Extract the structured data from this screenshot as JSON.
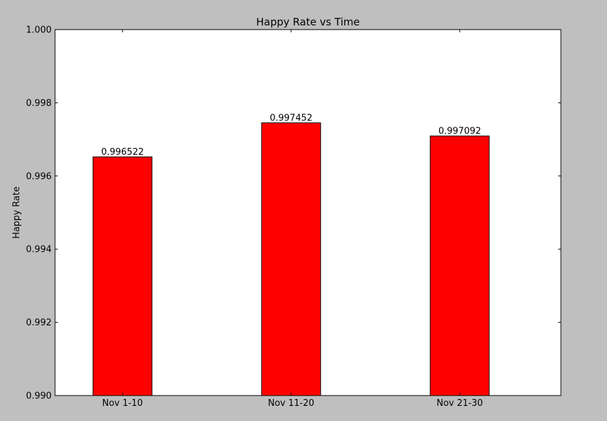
{
  "chart_data": {
    "type": "bar",
    "title": "Happy Rate vs Time",
    "xlabel": "",
    "ylabel": "Happy Rate",
    "categories": [
      "Nov 1-10",
      "Nov 11-20",
      "Nov 21-30"
    ],
    "values": [
      0.996522,
      0.997452,
      0.997092
    ],
    "value_labels": [
      "0.996522",
      "0.997452",
      "0.997092"
    ],
    "ylim": [
      0.99,
      1.0
    ],
    "yticks": [
      0.99,
      0.992,
      0.994,
      0.996,
      0.998,
      1.0
    ],
    "ytick_labels": [
      "0.990",
      "0.992",
      "0.994",
      "0.996",
      "0.998",
      "1.000"
    ],
    "grid": false,
    "colors": {
      "bar": "#ff0000",
      "bar_edge": "#000000",
      "background": "#bfbfbf",
      "plot_area": "#ffffff"
    }
  }
}
